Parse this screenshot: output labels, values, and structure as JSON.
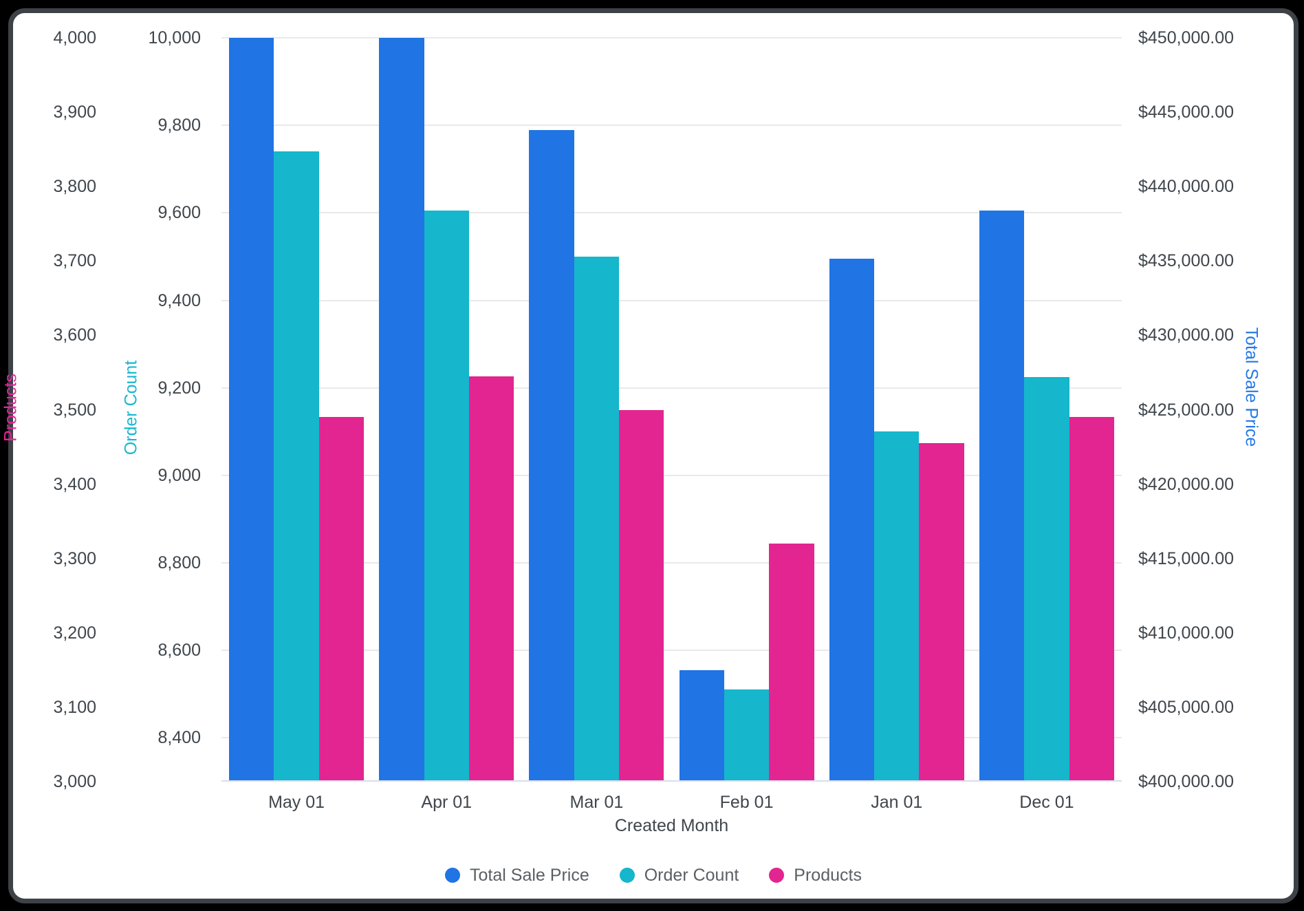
{
  "window": {
    "background": "#000000",
    "frame_border_color": "#3d4247",
    "card_background": "#ffffff"
  },
  "chart_data": {
    "type": "bar",
    "title": "",
    "xlabel": "Created Month",
    "categories": [
      "May 01",
      "Apr 01",
      "Mar 01",
      "Feb 01",
      "Jan 01",
      "Dec 01"
    ],
    "series": [
      {
        "name": "Total Sale Price",
        "axis": "dollars",
        "color": "#2074e4",
        "values": [
          450000,
          450000,
          443800,
          407500,
          435150,
          438400
        ]
      },
      {
        "name": "Order Count",
        "axis": "orders",
        "color": "#16b6cc",
        "values": [
          9740,
          9605,
          9500,
          8510,
          9100,
          9225
        ]
      },
      {
        "name": "Products",
        "axis": "products",
        "color": "#e22590",
        "values": [
          3490,
          3545,
          3500,
          3320,
          3455,
          3490
        ]
      }
    ],
    "axes": {
      "products": {
        "title": "Products",
        "title_color": "#e8259a",
        "side": "left-outer",
        "min": 3000,
        "max": 4000,
        "ticks": [
          {
            "v": 4000,
            "label": "4,000"
          },
          {
            "v": 3900,
            "label": "3,900"
          },
          {
            "v": 3800,
            "label": "3,800"
          },
          {
            "v": 3700,
            "label": "3,700"
          },
          {
            "v": 3600,
            "label": "3,600"
          },
          {
            "v": 3500,
            "label": "3,500"
          },
          {
            "v": 3400,
            "label": "3,400"
          },
          {
            "v": 3300,
            "label": "3,300"
          },
          {
            "v": 3200,
            "label": "3,200"
          },
          {
            "v": 3100,
            "label": "3,100"
          },
          {
            "v": 3000,
            "label": "3,000"
          }
        ]
      },
      "orders": {
        "title": "Order Count",
        "title_color": "#18b7d0",
        "side": "left-inner",
        "min": 8300,
        "max": 10000,
        "ticks": [
          {
            "v": 10000,
            "label": "10,000"
          },
          {
            "v": 9800,
            "label": "9,800"
          },
          {
            "v": 9600,
            "label": "9,600"
          },
          {
            "v": 9400,
            "label": "9,400"
          },
          {
            "v": 9200,
            "label": "9,200"
          },
          {
            "v": 9000,
            "label": "9,000"
          },
          {
            "v": 8800,
            "label": "8,800"
          },
          {
            "v": 8600,
            "label": "8,600"
          },
          {
            "v": 8400,
            "label": "8,400"
          }
        ]
      },
      "dollars": {
        "title": "Total Sale Price",
        "title_color": "#2478e8",
        "side": "right",
        "min": 400000,
        "max": 450000,
        "ticks": [
          {
            "v": 450000,
            "label": "$450,000.00"
          },
          {
            "v": 445000,
            "label": "$445,000.00"
          },
          {
            "v": 440000,
            "label": "$440,000.00"
          },
          {
            "v": 435000,
            "label": "$435,000.00"
          },
          {
            "v": 430000,
            "label": "$430,000.00"
          },
          {
            "v": 425000,
            "label": "$425,000.00"
          },
          {
            "v": 420000,
            "label": "$420,000.00"
          },
          {
            "v": 415000,
            "label": "$415,000.00"
          },
          {
            "v": 410000,
            "label": "$410,000.00"
          },
          {
            "v": 405000,
            "label": "$405,000.00"
          },
          {
            "v": 400000,
            "label": "$400,000.00"
          }
        ]
      }
    },
    "gridline_axis": "orders",
    "legend": {
      "position": "bottom-center",
      "entries": [
        "Total Sale Price",
        "Order Count",
        "Products"
      ]
    },
    "layout": {
      "grid": true,
      "bar_gap_in_group": 0
    }
  }
}
